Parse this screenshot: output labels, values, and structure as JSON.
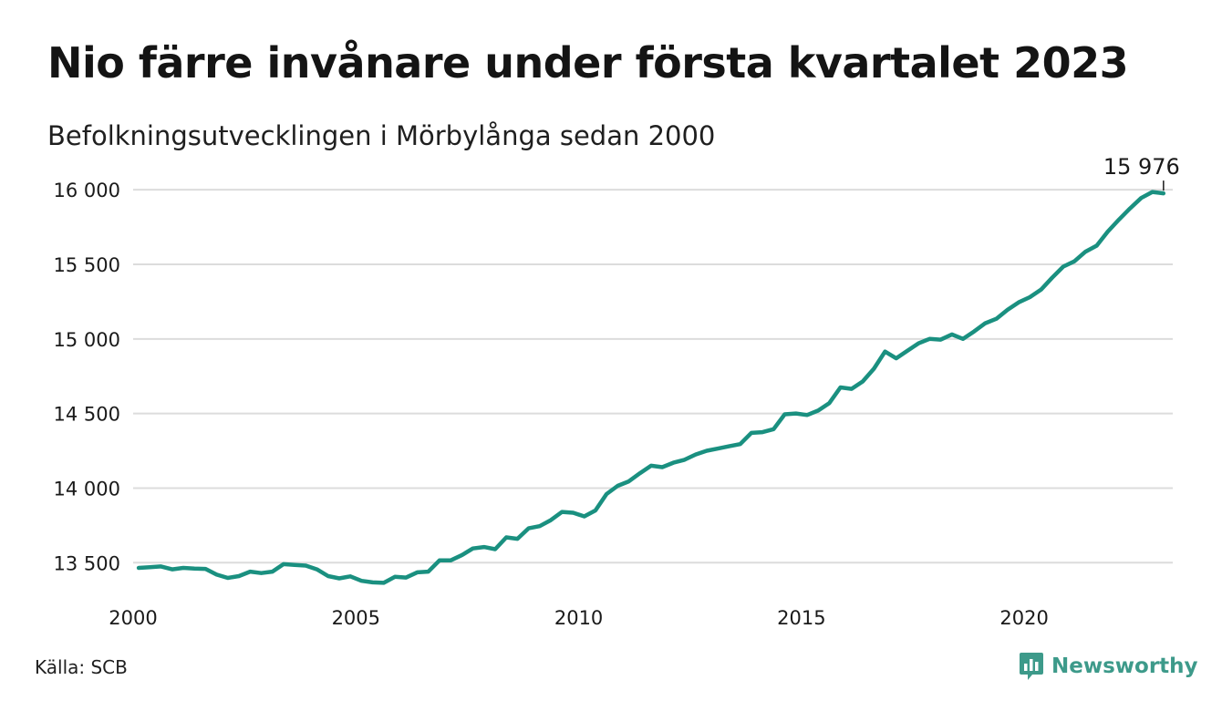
{
  "title": "Nio färre invånare under första kvartalet 2023",
  "subtitle": "Befolkningsutvecklingen i Mörbylånga sedan 2000",
  "source": "Källa: SCB",
  "brand": {
    "name": "Newsworthy",
    "icon": "newsworthy-logo-icon",
    "color": "#3d9a8a"
  },
  "colors": {
    "line": "#1a9080",
    "grid": "#dcdcdc",
    "text": "#1a1a1a"
  },
  "chart_data": {
    "type": "line",
    "title": "Nio färre invånare under första kvartalet 2023",
    "subtitle": "Befolkningsutvecklingen i Mörbylånga sedan 2000",
    "xlabel": "",
    "ylabel": "",
    "x_ticks": [
      "2000",
      "2005",
      "2010",
      "2015",
      "2020"
    ],
    "y_ticks": [
      13500,
      14000,
      14500,
      15000,
      15500,
      16000
    ],
    "y_tick_labels": [
      "13 500",
      "14 000",
      "14 500",
      "15 000",
      "15 500",
      "16 000"
    ],
    "xlim": [
      "2000-01",
      "2023-04"
    ],
    "ylim": [
      13300,
      16050
    ],
    "grid": "horizontal",
    "legend": "none",
    "annotation": {
      "text": "15 976",
      "x": "2023-Q1",
      "y": 15976
    },
    "series": [
      {
        "color": "#1a9080",
        "x": [
          "2000-Q1",
          "2000-Q2",
          "2000-Q3",
          "2000-Q4",
          "2001-Q1",
          "2001-Q2",
          "2001-Q3",
          "2001-Q4",
          "2002-Q1",
          "2002-Q2",
          "2002-Q3",
          "2002-Q4",
          "2003-Q1",
          "2003-Q2",
          "2003-Q3",
          "2003-Q4",
          "2004-Q1",
          "2004-Q2",
          "2004-Q3",
          "2004-Q4",
          "2005-Q1",
          "2005-Q2",
          "2005-Q3",
          "2005-Q4",
          "2006-Q1",
          "2006-Q2",
          "2006-Q3",
          "2006-Q4",
          "2007-Q1",
          "2007-Q2",
          "2007-Q3",
          "2007-Q4",
          "2008-Q1",
          "2008-Q2",
          "2008-Q3",
          "2008-Q4",
          "2009-Q1",
          "2009-Q2",
          "2009-Q3",
          "2009-Q4",
          "2010-Q1",
          "2010-Q2",
          "2010-Q3",
          "2010-Q4",
          "2011-Q1",
          "2011-Q2",
          "2011-Q3",
          "2011-Q4",
          "2012-Q1",
          "2012-Q2",
          "2012-Q3",
          "2012-Q4",
          "2013-Q1",
          "2013-Q2",
          "2013-Q3",
          "2013-Q4",
          "2014-Q1",
          "2014-Q2",
          "2014-Q3",
          "2014-Q4",
          "2015-Q1",
          "2015-Q2",
          "2015-Q3",
          "2015-Q4",
          "2016-Q1",
          "2016-Q2",
          "2016-Q3",
          "2016-Q4",
          "2017-Q1",
          "2017-Q2",
          "2017-Q3",
          "2017-Q4",
          "2018-Q1",
          "2018-Q2",
          "2018-Q3",
          "2018-Q4",
          "2019-Q1",
          "2019-Q2",
          "2019-Q3",
          "2019-Q4",
          "2020-Q1",
          "2020-Q2",
          "2020-Q3",
          "2020-Q4",
          "2021-Q1",
          "2021-Q2",
          "2021-Q3",
          "2021-Q4",
          "2022-Q1",
          "2022-Q2",
          "2022-Q3",
          "2022-Q4",
          "2023-Q1"
        ],
        "values": [
          13465,
          13470,
          13475,
          13455,
          13465,
          13460,
          13458,
          13420,
          13398,
          13410,
          13440,
          13430,
          13440,
          13490,
          13485,
          13480,
          13455,
          13410,
          13395,
          13408,
          13378,
          13368,
          13365,
          13405,
          13400,
          13435,
          13440,
          13515,
          13515,
          13550,
          13595,
          13605,
          13590,
          13670,
          13660,
          13730,
          13745,
          13785,
          13840,
          13835,
          13810,
          13850,
          13960,
          14015,
          14045,
          14100,
          14150,
          14140,
          14170,
          14190,
          14225,
          14250,
          14265,
          14280,
          14295,
          14370,
          14375,
          14395,
          14495,
          14500,
          14490,
          14520,
          14570,
          14675,
          14665,
          14715,
          14800,
          14915,
          14870,
          14920,
          14970,
          15000,
          14995,
          15030,
          15000,
          15050,
          15105,
          15135,
          15195,
          15245,
          15280,
          15330,
          15410,
          15485,
          15520,
          15585,
          15625,
          15720,
          15800,
          15875,
          15945,
          15985,
          15976
        ]
      }
    ]
  }
}
